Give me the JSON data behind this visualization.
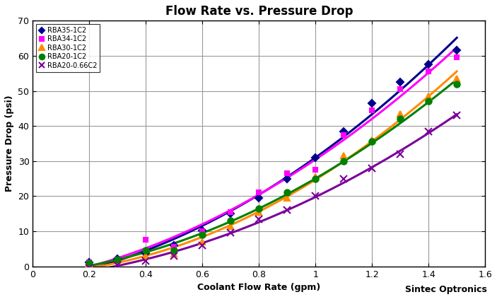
{
  "title": "Flow Rate vs. Pressure Drop",
  "xlabel": "Coolant Flow Rate (gpm)",
  "ylabel": "Pressure Drop (psi)",
  "watermark": "Sintec Optronics",
  "xlim": [
    0,
    1.6
  ],
  "ylim": [
    0,
    70
  ],
  "xticks": [
    0,
    0.2,
    0.4,
    0.6,
    0.8,
    1.0,
    1.2,
    1.4,
    1.6
  ],
  "yticks": [
    0,
    10,
    20,
    30,
    40,
    50,
    60,
    70
  ],
  "series": [
    {
      "label": "RBA35-1C2",
      "color": "#00008B",
      "marker": "D",
      "markersize": 5,
      "x": [
        0.2,
        0.3,
        0.4,
        0.5,
        0.6,
        0.7,
        0.8,
        0.9,
        1.0,
        1.1,
        1.2,
        1.3,
        1.4,
        1.5
      ],
      "y": [
        1.2,
        2.2,
        3.8,
        6.0,
        10.2,
        15.0,
        19.5,
        25.0,
        31.0,
        38.5,
        46.5,
        52.5,
        57.5,
        61.5
      ]
    },
    {
      "label": "RBA34-1C2",
      "color": "#FF00FF",
      "marker": "s",
      "markersize": 5,
      "x": [
        0.2,
        0.3,
        0.4,
        0.5,
        0.6,
        0.7,
        0.8,
        0.9,
        1.0,
        1.1,
        1.2,
        1.3,
        1.4,
        1.5
      ],
      "y": [
        1.1,
        2.0,
        7.5,
        5.5,
        10.0,
        15.5,
        21.0,
        26.5,
        27.5,
        37.5,
        44.5,
        50.5,
        55.5,
        59.5
      ]
    },
    {
      "label": "RBA30-1C2",
      "color": "#FF8C00",
      "marker": "^",
      "markersize": 6,
      "x": [
        0.2,
        0.3,
        0.4,
        0.5,
        0.6,
        0.7,
        0.8,
        0.9,
        1.0,
        1.1,
        1.2,
        1.3,
        1.4,
        1.5
      ],
      "y": [
        0.8,
        1.5,
        3.0,
        3.5,
        7.0,
        11.5,
        15.5,
        19.5,
        25.5,
        31.5,
        36.0,
        43.5,
        48.5,
        53.5
      ]
    },
    {
      "label": "RBA20-1C2",
      "color": "#008000",
      "marker": "o",
      "markersize": 6,
      "x": [
        0.2,
        0.3,
        0.4,
        0.5,
        0.6,
        0.7,
        0.8,
        0.9,
        1.0,
        1.1,
        1.2,
        1.3,
        1.4,
        1.5
      ],
      "y": [
        1.0,
        2.0,
        4.5,
        4.5,
        9.0,
        13.0,
        16.5,
        21.0,
        25.0,
        30.0,
        35.5,
        42.0,
        47.0,
        52.0
      ]
    },
    {
      "label": "RBA20-0.66C2",
      "color": "#7B0099",
      "marker": "x",
      "markersize": 7,
      "x": [
        0.2,
        0.3,
        0.4,
        0.5,
        0.6,
        0.7,
        0.8,
        0.9,
        1.0,
        1.1,
        1.2,
        1.3,
        1.4,
        1.5
      ],
      "y": [
        -0.5,
        0.3,
        1.5,
        3.0,
        6.0,
        9.5,
        13.5,
        16.0,
        20.0,
        25.0,
        28.0,
        32.0,
        38.5,
        43.0
      ]
    }
  ]
}
